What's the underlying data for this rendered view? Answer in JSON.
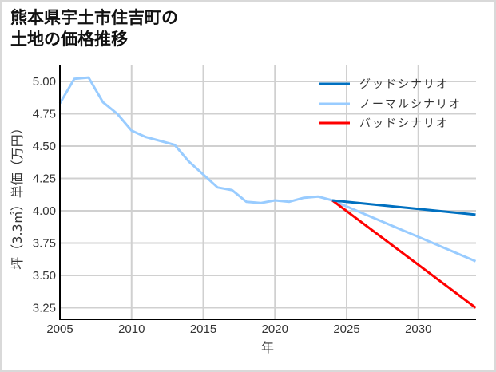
{
  "title": {
    "line1": "熊本県宇土市住吉町の",
    "line2": "土地の価格推移"
  },
  "chart_data": {
    "type": "line",
    "title": "熊本県宇土市住吉町の土地の価格推移",
    "xlabel": "年",
    "ylabel": "坪（3.3㎡）単価（万円）",
    "xlim": [
      2005,
      2034
    ],
    "ylim": [
      3.15,
      5.12
    ],
    "xticks": [
      2005,
      2010,
      2015,
      2020,
      2025,
      2030
    ],
    "yticks": [
      3.25,
      3.5,
      3.75,
      4.0,
      4.25,
      4.5,
      4.75,
      5.0
    ],
    "ytick_labels": [
      "3.25",
      "3.50",
      "3.75",
      "4.00",
      "4.25",
      "4.50",
      "4.75",
      "5.00"
    ],
    "grid": true,
    "legend_position": "upper right",
    "series": [
      {
        "name": "グッドシナリオ",
        "color": "#0070c0",
        "x": [
          2024,
          2034
        ],
        "values": [
          4.08,
          3.97
        ]
      },
      {
        "name": "ノーマルシナリオ",
        "color": "#99ccff",
        "x": [
          2005,
          2006,
          2007,
          2008,
          2009,
          2010,
          2011,
          2012,
          2013,
          2014,
          2015,
          2016,
          2017,
          2018,
          2019,
          2020,
          2021,
          2022,
          2023,
          2024,
          2034
        ],
        "values": [
          4.83,
          5.02,
          5.03,
          4.84,
          4.75,
          4.62,
          4.57,
          4.54,
          4.51,
          4.38,
          4.28,
          4.18,
          4.16,
          4.07,
          4.06,
          4.08,
          4.07,
          4.1,
          4.11,
          4.08,
          3.61
        ]
      },
      {
        "name": "バッドシナリオ",
        "color": "#ff0000",
        "x": [
          2024,
          2034
        ],
        "values": [
          4.08,
          3.25
        ]
      }
    ]
  }
}
